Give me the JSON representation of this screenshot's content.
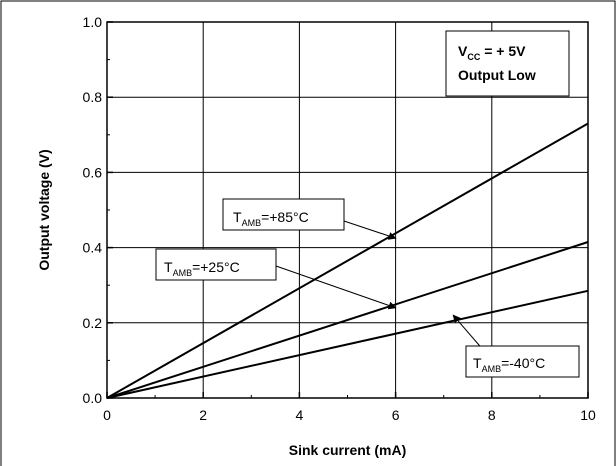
{
  "chart_data": {
    "type": "line",
    "xlabel": "Sink current (mA)",
    "ylabel": "Output voltage (V)",
    "xlim": [
      0,
      10
    ],
    "ylim": [
      0,
      1.0
    ],
    "x_ticks": [
      "0",
      "2",
      "4",
      "6",
      "8",
      "10"
    ],
    "y_ticks": [
      "0.0",
      "0.2",
      "0.4",
      "0.6",
      "0.8",
      "1.0"
    ],
    "grid": true,
    "series": [
      {
        "name": "TAMB=+85°C",
        "x": [
          0,
          10
        ],
        "y": [
          0,
          0.73
        ]
      },
      {
        "name": "TAMB=+25°C",
        "x": [
          0,
          10
        ],
        "y": [
          0,
          0.415
        ]
      },
      {
        "name": "TAMB=-40°C",
        "x": [
          0,
          10
        ],
        "y": [
          0,
          0.285
        ]
      }
    ],
    "annotations": [
      {
        "main": "T",
        "sub": "AMB",
        "rest": "=+85°C",
        "target_x": 6.0,
        "target_y": 0.425
      },
      {
        "main": "T",
        "sub": "AMB",
        "rest": "=+25°C",
        "target_x": 6.0,
        "target_y": 0.24
      },
      {
        "main": "T",
        "sub": "AMB",
        "rest": "=-40°C",
        "target_x": 7.2,
        "target_y": 0.22
      }
    ],
    "conditions": {
      "line1_main": "V",
      "line1_sub": "CC",
      "line1_rest": " = + 5V",
      "line2": "Output Low"
    }
  }
}
